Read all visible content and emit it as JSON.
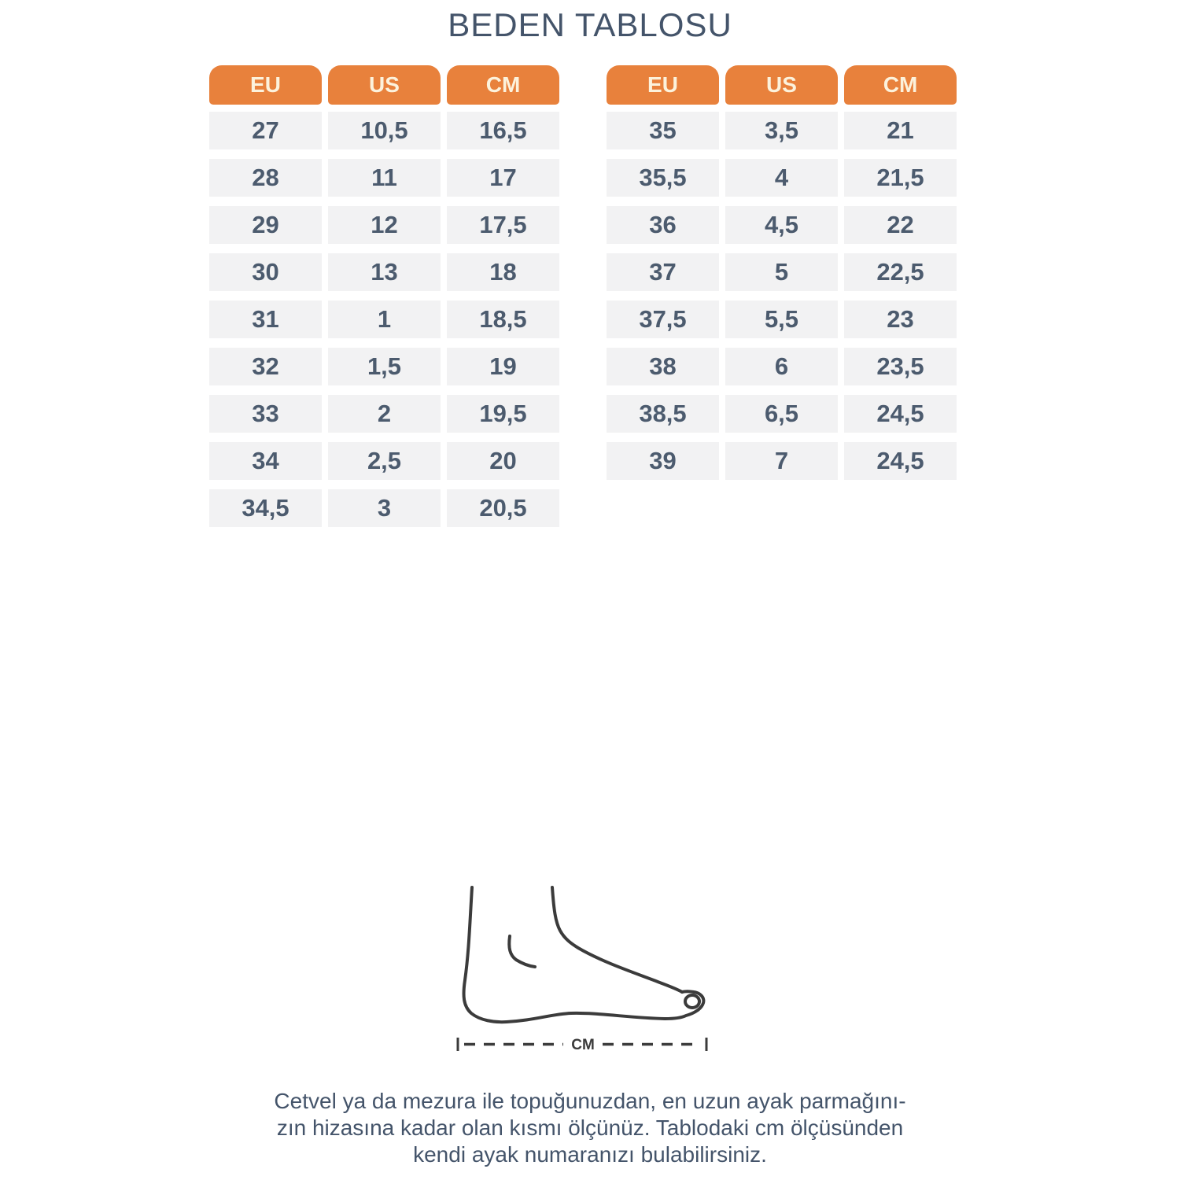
{
  "title": "BEDEN TABLOSU",
  "left_table": {
    "headers": [
      "EU",
      "US",
      "CM"
    ],
    "rows": [
      [
        "27",
        "10,5",
        "16,5"
      ],
      [
        "28",
        "11",
        "17"
      ],
      [
        "29",
        "12",
        "17,5"
      ],
      [
        "30",
        "13",
        "18"
      ],
      [
        "31",
        "1",
        "18,5"
      ],
      [
        "32",
        "1,5",
        "19"
      ],
      [
        "33",
        "2",
        "19,5"
      ],
      [
        "34",
        "2,5",
        "20"
      ],
      [
        "34,5",
        "3",
        "20,5"
      ]
    ]
  },
  "right_table": {
    "headers": [
      "EU",
      "US",
      "CM"
    ],
    "rows": [
      [
        "35",
        "3,5",
        "21"
      ],
      [
        "35,5",
        "4",
        "21,5"
      ],
      [
        "36",
        "4,5",
        "22"
      ],
      [
        "37",
        "5",
        "22,5"
      ],
      [
        "37,5",
        "5,5",
        "23"
      ],
      [
        "38",
        "6",
        "23,5"
      ],
      [
        "38,5",
        "6,5",
        "24,5"
      ],
      [
        "39",
        "7",
        "24,5"
      ]
    ]
  },
  "figure": {
    "measure_label": "CM"
  },
  "note_lines": [
    "Cetvel ya da mezura ile topuğunuzdan, en uzun ayak parmağını-",
    "zın hizasına kadar olan kısmı ölçünüz. Tablodaki cm ölçüsünden",
    "kendi ayak numaranızı bulabilirsiniz."
  ],
  "colors": {
    "header_bg": "#E8813C",
    "header_text": "#FCF2DC",
    "cell_bg": "#F2F2F3",
    "cell_text": "#4C5B6E",
    "title_text": "#44546A",
    "figure_stroke": "#3B3B3B"
  }
}
